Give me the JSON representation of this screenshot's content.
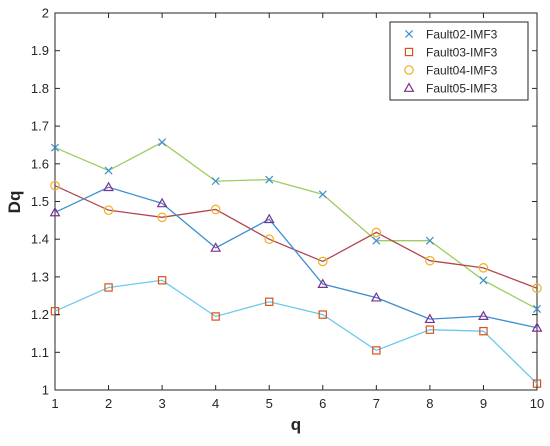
{
  "chart_data": {
    "type": "line",
    "title": "",
    "xlabel": "q",
    "ylabel": "Dq",
    "x": [
      1,
      2,
      3,
      4,
      5,
      6,
      7,
      8,
      9,
      10
    ],
    "xlim": [
      1,
      10
    ],
    "ylim": [
      1,
      2
    ],
    "xticks": [
      "1",
      "2",
      "3",
      "4",
      "5",
      "6",
      "7",
      "8",
      "9",
      "10"
    ],
    "yticks": [
      "1",
      "1.1",
      "1.2",
      "1.3",
      "1.4",
      "1.5",
      "1.6",
      "1.7",
      "1.8",
      "1.9",
      "2"
    ],
    "grid": false,
    "legend": {
      "placement": "top-right"
    },
    "series": [
      {
        "name": "Fault02-IMF3",
        "marker": "x",
        "marker_color": "#3b8fd1",
        "line_color": "#9ccd5e",
        "values": [
          1.643,
          1.582,
          1.657,
          1.554,
          1.558,
          1.519,
          1.396,
          1.396,
          1.291,
          1.215
        ]
      },
      {
        "name": "Fault03-IMF3",
        "marker": "square",
        "marker_color": "#d95319",
        "line_color": "#6cc9ee",
        "values": [
          1.209,
          1.272,
          1.291,
          1.195,
          1.234,
          1.2,
          1.105,
          1.16,
          1.156,
          1.017
        ]
      },
      {
        "name": "Fault04-IMF3",
        "marker": "circle",
        "marker_color": "#edb120",
        "line_color": "#b2464e",
        "values": [
          1.542,
          1.477,
          1.458,
          1.479,
          1.4,
          1.341,
          1.418,
          1.343,
          1.324,
          1.27
        ]
      },
      {
        "name": "Fault05-IMF3",
        "marker": "triangle",
        "marker_color": "#7e2f8e",
        "line_color": "#3b8fd1",
        "values": [
          1.471,
          1.538,
          1.495,
          1.377,
          1.453,
          1.281,
          1.245,
          1.188,
          1.196,
          1.165
        ]
      }
    ]
  }
}
